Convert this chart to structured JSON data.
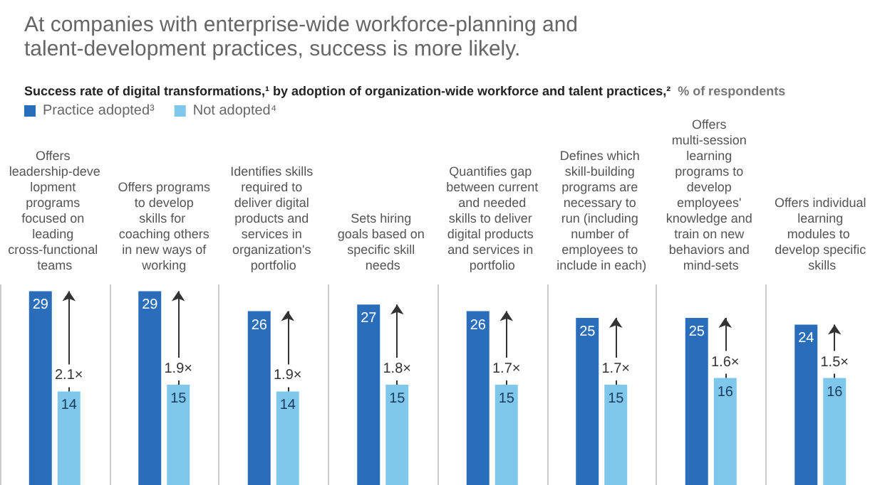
{
  "chart_data": {
    "type": "bar",
    "title": "At companies with enterprise-wide workforce-planning and talent-development practices, success is more likely.",
    "subtitle": "Success rate of digital transformations,¹ by adoption of organization-wide workforce and talent practices,²",
    "ylabel": "% of respondents",
    "categories": [
      "Offers leadership-development programs focused on leading cross-functional teams",
      "Offers programs to develop skills for coaching others in new ways of working",
      "Identifies skills required to deliver digital products and services in organization's portfolio",
      "Sets hiring goals based on specific skill needs",
      "Quantifies gap between current and needed skills to deliver digital products and services in portfolio",
      "Defines which skill-building programs are necessary to run (including number of employees to include in each)",
      "Offers multi-session learning programs to develop employees' knowledge and train on new behaviors and mind-sets",
      "Offers individual learning modules to develop specific skills"
    ],
    "series": [
      {
        "name": "Practice adopted³",
        "color": "#2a6ebb",
        "values": [
          29,
          29,
          26,
          27,
          26,
          25,
          25,
          24
        ]
      },
      {
        "name": "Not adopted⁴",
        "color": "#7fc8ec",
        "values": [
          14,
          15,
          14,
          15,
          15,
          15,
          16,
          16
        ]
      }
    ],
    "annotations": [
      {
        "text": "2.1×",
        "x": "Offers leadership-development programs focused on leading cross-functional teams",
        "y": 14
      },
      {
        "text": "1.9×",
        "x": "Offers programs to develop skills for coaching others in new ways of working",
        "y": 15
      },
      {
        "text": "1.9×",
        "x": "Identifies skills required to deliver digital products and services in organization's portfolio",
        "y": 14
      },
      {
        "text": "1.8×",
        "x": "Sets hiring goals based on specific skill needs",
        "y": 15
      },
      {
        "text": "1.7×",
        "x": "Quantifies gap between current and needed skills to deliver digital products and services in portfolio",
        "y": 15
      },
      {
        "text": "1.7×",
        "x": "Defines which skill-building programs are necessary to run (including number of employees to include in each)",
        "y": 15
      },
      {
        "text": "1.6×",
        "x": "Offers multi-session learning programs to develop employees' knowledge and train on new behaviors and mind-sets",
        "y": 16
      },
      {
        "text": "1.5×",
        "x": "Offers individual learning modules to develop specific skills",
        "y": 16
      }
    ],
    "data_labels": true,
    "grid": "x",
    "legend": "top left"
  }
}
